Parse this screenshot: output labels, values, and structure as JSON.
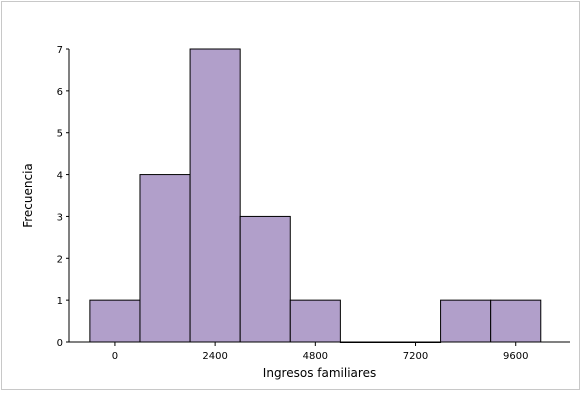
{
  "chart_data": {
    "type": "bar",
    "title": "",
    "xlabel": "Ingresos familiares",
    "ylabel": "Frecuencia",
    "categories": [
      "-600–600",
      "600–1800",
      "1800–3000",
      "3000–4200",
      "4200–5400",
      "5400–6600",
      "6600–7800",
      "7800–9000",
      "9000–10200"
    ],
    "bin_edges": [
      -600,
      600,
      1800,
      3000,
      4200,
      5400,
      6600,
      7800,
      9000,
      10200
    ],
    "values": [
      1,
      4,
      7,
      3,
      1,
      0,
      0,
      1,
      1
    ],
    "x_ticks": [
      0,
      2400,
      4800,
      7200,
      9600
    ],
    "x_tick_labels": [
      "0",
      "2400",
      "4800",
      "7200",
      "9600"
    ],
    "y_ticks": [
      0,
      1,
      2,
      3,
      4,
      5,
      6,
      7
    ],
    "y_tick_labels": [
      "0",
      "1",
      "2",
      "3",
      "4",
      "5",
      "6",
      "7"
    ],
    "xlim": [
      -1100,
      10900
    ],
    "ylim": [
      0,
      7
    ],
    "grid": false,
    "legend": "none",
    "bar_color": "#b19fca",
    "bar_edge_color": "#000000"
  }
}
